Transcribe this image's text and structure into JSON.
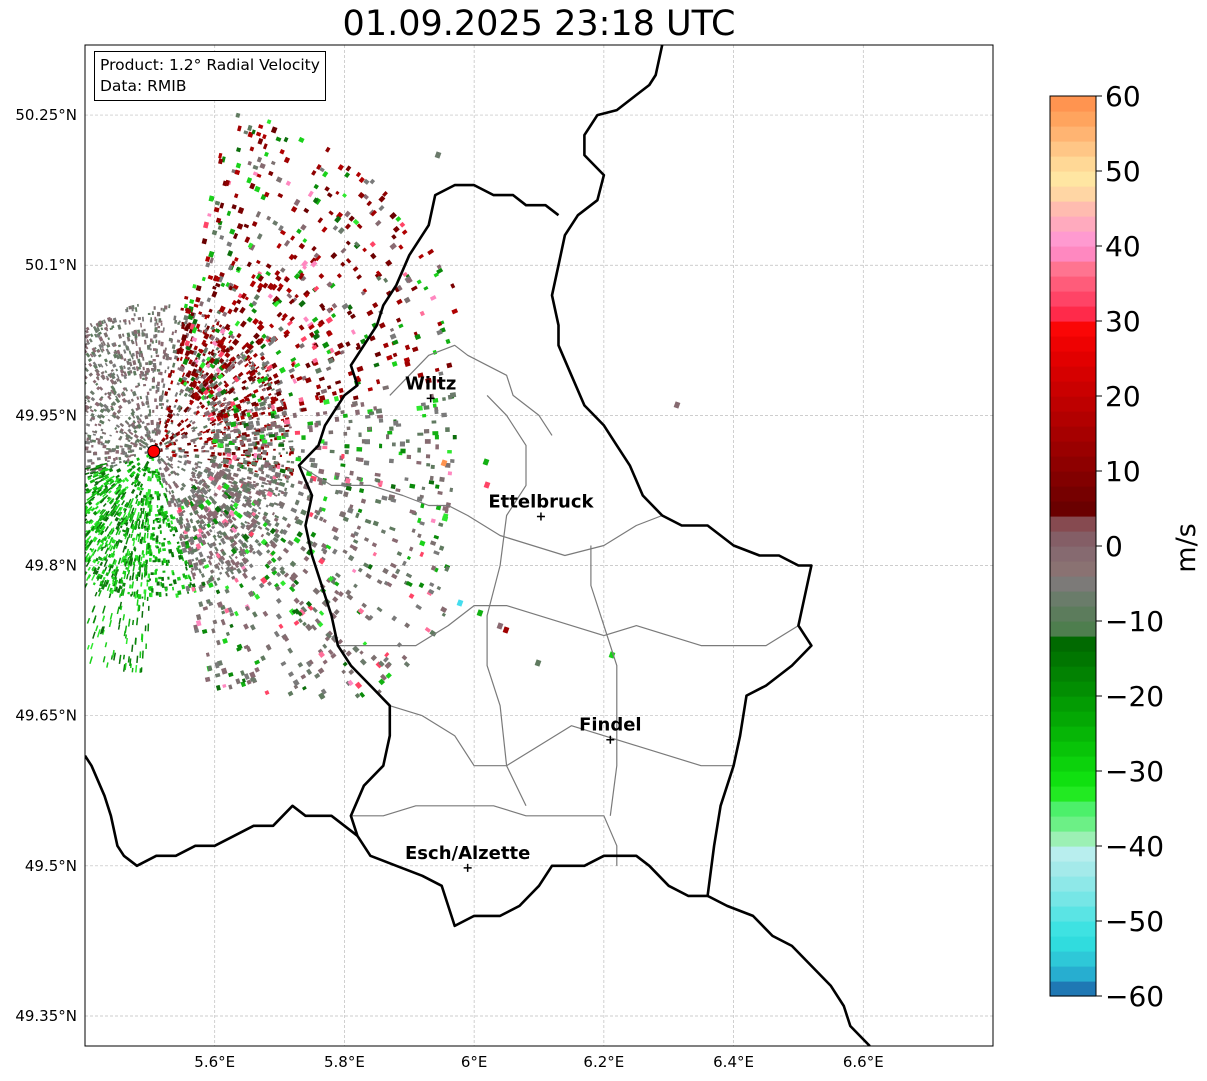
{
  "title": "01.09.2025 23:18 UTC",
  "info": {
    "product": "Product: 1.2° Radial Velocity",
    "data": "Data: RMIB"
  },
  "axes": {
    "lon_range": [
      5.4,
      6.8
    ],
    "lat_range": [
      49.32,
      50.32
    ],
    "x_ticks": [
      {
        "v": 5.6,
        "label": "5.6°E"
      },
      {
        "v": 5.8,
        "label": "5.8°E"
      },
      {
        "v": 6.0,
        "label": "6°E"
      },
      {
        "v": 6.2,
        "label": "6.2°E"
      },
      {
        "v": 6.4,
        "label": "6.4°E"
      },
      {
        "v": 6.6,
        "label": "6.6°E"
      }
    ],
    "y_ticks": [
      {
        "v": 50.25,
        "label": "50.25°N"
      },
      {
        "v": 50.1,
        "label": "50.1°N"
      },
      {
        "v": 49.95,
        "label": "49.95°N"
      },
      {
        "v": 49.8,
        "label": "49.8°N"
      },
      {
        "v": 49.65,
        "label": "49.65°N"
      },
      {
        "v": 49.5,
        "label": "49.5°N"
      },
      {
        "v": 49.35,
        "label": "49.35°N"
      }
    ],
    "grid": true
  },
  "radar_site": {
    "lon": 5.506,
    "lat": 49.914
  },
  "cities": [
    {
      "name": "Wiltz",
      "lon": 5.933,
      "lat": 49.967
    },
    {
      "name": "Ettelbruck",
      "lon": 6.103,
      "lat": 49.849
    },
    {
      "name": "Findel",
      "lon": 6.21,
      "lat": 49.626
    },
    {
      "name": "Esch/Alzette",
      "lon": 5.99,
      "lat": 49.498
    }
  ],
  "colorbar": {
    "label": "m/s",
    "min": -60,
    "max": 60,
    "ticks": [
      60,
      50,
      40,
      30,
      20,
      10,
      0,
      -10,
      -20,
      -30,
      -40,
      -50,
      -60
    ],
    "colors": [
      "#1f78b4",
      "#27aed0",
      "#2ec8d8",
      "#30dcde",
      "#3ee2e2",
      "#5ae4e4",
      "#76e6e6",
      "#8ee8e8",
      "#a4eaea",
      "#b8eeee",
      "#9cf0b4",
      "#6cf086",
      "#4cf06a",
      "#22ea22",
      "#10e010",
      "#0cd20c",
      "#08c408",
      "#06b606",
      "#04a804",
      "#039c03",
      "#028e02",
      "#028202",
      "#017601",
      "#016a01",
      "#4e7e4e",
      "#5c7c5c",
      "#6a7c6a",
      "#7c7a78",
      "#8a7272",
      "#866a70",
      "#845e66",
      "#864a50",
      "#6a0000",
      "#760000",
      "#820000",
      "#8e0000",
      "#9a0000",
      "#a60000",
      "#b20000",
      "#be0000",
      "#ca0000",
      "#d60000",
      "#e20000",
      "#ee0202",
      "#fa0606",
      "#ff2a4a",
      "#ff4466",
      "#ff5c7a",
      "#ff7490",
      "#ff88c0",
      "#ff9ad0",
      "#ffaabe",
      "#ffbcb0",
      "#ffd6a4",
      "#ffe6a2",
      "#ffd896",
      "#ffc686",
      "#ffb472",
      "#ffa45e",
      "#ff9450"
    ]
  },
  "borders": {
    "country": [
      [
        [
          6.29,
          50.32
        ],
        [
          6.28,
          50.29
        ],
        [
          6.27,
          50.28
        ],
        [
          6.25,
          50.27
        ],
        [
          6.22,
          50.255
        ],
        [
          6.19,
          50.25
        ],
        [
          6.17,
          50.23
        ],
        [
          6.17,
          50.21
        ],
        [
          6.2,
          50.19
        ],
        [
          6.19,
          50.165
        ],
        [
          6.16,
          50.15
        ],
        [
          6.15,
          50.14
        ],
        [
          6.14,
          50.13
        ],
        [
          6.13,
          50.1
        ],
        [
          6.12,
          50.07
        ],
        [
          6.13,
          50.04
        ],
        [
          6.13,
          50.02
        ],
        [
          6.15,
          49.99
        ],
        [
          6.17,
          49.96
        ],
        [
          6.2,
          49.94
        ],
        [
          6.22,
          49.92
        ],
        [
          6.24,
          49.9
        ],
        [
          6.26,
          49.87
        ],
        [
          6.29,
          49.85
        ],
        [
          6.32,
          49.84
        ],
        [
          6.36,
          49.84
        ],
        [
          6.4,
          49.82
        ],
        [
          6.44,
          49.81
        ],
        [
          6.47,
          49.81
        ],
        [
          6.5,
          49.8
        ],
        [
          6.52,
          49.8
        ],
        [
          6.51,
          49.77
        ],
        [
          6.5,
          49.74
        ],
        [
          6.52,
          49.72
        ],
        [
          6.49,
          49.7
        ],
        [
          6.45,
          49.68
        ],
        [
          6.42,
          49.67
        ],
        [
          6.41,
          49.63
        ],
        [
          6.4,
          49.6
        ],
        [
          6.38,
          49.56
        ],
        [
          6.37,
          49.52
        ],
        [
          6.36,
          49.47
        ],
        [
          6.33,
          49.47
        ],
        [
          6.3,
          49.48
        ],
        [
          6.27,
          49.5
        ],
        [
          6.25,
          49.51
        ],
        [
          6.2,
          49.51
        ],
        [
          6.17,
          49.5
        ],
        [
          6.12,
          49.5
        ],
        [
          6.1,
          49.48
        ],
        [
          6.07,
          49.46
        ],
        [
          6.04,
          49.45
        ],
        [
          6.0,
          49.45
        ],
        [
          5.97,
          49.44
        ],
        [
          5.96,
          49.46
        ],
        [
          5.95,
          49.48
        ],
        [
          5.92,
          49.49
        ],
        [
          5.88,
          49.5
        ],
        [
          5.84,
          49.51
        ],
        [
          5.82,
          49.53
        ],
        [
          5.81,
          49.55
        ],
        [
          5.83,
          49.58
        ],
        [
          5.86,
          49.6
        ],
        [
          5.87,
          49.63
        ],
        [
          5.87,
          49.66
        ],
        [
          5.84,
          49.68
        ],
        [
          5.81,
          49.7
        ],
        [
          5.79,
          49.72
        ],
        [
          5.78,
          49.75
        ],
        [
          5.76,
          49.79
        ],
        [
          5.75,
          49.81
        ],
        [
          5.74,
          49.84
        ],
        [
          5.75,
          49.87
        ],
        [
          5.73,
          49.9
        ],
        [
          5.76,
          49.92
        ],
        [
          5.77,
          49.94
        ],
        [
          5.8,
          49.97
        ],
        [
          5.82,
          49.98
        ],
        [
          5.81,
          50.0
        ],
        [
          5.83,
          50.02
        ],
        [
          5.85,
          50.04
        ],
        [
          5.86,
          50.06
        ],
        [
          5.88,
          50.08
        ],
        [
          5.9,
          50.11
        ],
        [
          5.93,
          50.14
        ],
        [
          5.94,
          50.17
        ],
        [
          5.97,
          50.18
        ],
        [
          6.0,
          50.18
        ],
        [
          6.03,
          50.17
        ],
        [
          6.06,
          50.17
        ],
        [
          6.08,
          50.16
        ],
        [
          6.11,
          50.16
        ],
        [
          6.13,
          50.15
        ]
      ],
      [
        [
          5.82,
          49.53
        ],
        [
          5.78,
          49.55
        ],
        [
          5.74,
          49.55
        ],
        [
          5.72,
          49.56
        ],
        [
          5.69,
          49.54
        ],
        [
          5.66,
          49.54
        ],
        [
          5.63,
          49.53
        ],
        [
          5.6,
          49.52
        ],
        [
          5.57,
          49.52
        ],
        [
          5.54,
          49.51
        ],
        [
          5.51,
          49.51
        ],
        [
          5.48,
          49.5
        ],
        [
          5.46,
          49.51
        ],
        [
          5.45,
          49.52
        ],
        [
          5.44,
          49.55
        ],
        [
          5.43,
          49.57
        ],
        [
          5.41,
          49.6
        ],
        [
          5.4,
          49.61
        ]
      ],
      [
        [
          6.36,
          49.47
        ],
        [
          6.39,
          49.46
        ],
        [
          6.43,
          49.45
        ],
        [
          6.46,
          49.43
        ],
        [
          6.49,
          49.42
        ],
        [
          6.52,
          49.4
        ],
        [
          6.55,
          49.38
        ],
        [
          6.57,
          49.36
        ],
        [
          6.58,
          49.34
        ],
        [
          6.61,
          49.32
        ]
      ]
    ],
    "canton": [
      [
        [
          5.87,
          49.97
        ],
        [
          5.9,
          49.99
        ],
        [
          5.93,
          50.01
        ],
        [
          5.97,
          50.02
        ],
        [
          5.99,
          50.01
        ],
        [
          6.02,
          50.0
        ],
        [
          6.05,
          49.99
        ],
        [
          6.06,
          49.97
        ],
        [
          6.1,
          49.95
        ],
        [
          6.12,
          49.93
        ]
      ],
      [
        [
          5.73,
          49.9
        ],
        [
          5.78,
          49.88
        ],
        [
          5.84,
          49.88
        ],
        [
          5.89,
          49.87
        ],
        [
          5.93,
          49.86
        ],
        [
          5.96,
          49.86
        ],
        [
          5.99,
          49.85
        ],
        [
          6.04,
          49.83
        ],
        [
          6.09,
          49.82
        ],
        [
          6.14,
          49.81
        ],
        [
          6.2,
          49.82
        ],
        [
          6.25,
          49.84
        ],
        [
          6.29,
          49.85
        ]
      ],
      [
        [
          5.79,
          49.72
        ],
        [
          5.85,
          49.72
        ],
        [
          5.91,
          49.72
        ],
        [
          5.96,
          49.74
        ],
        [
          6.0,
          49.76
        ],
        [
          6.05,
          49.76
        ],
        [
          6.1,
          49.75
        ],
        [
          6.15,
          49.74
        ],
        [
          6.2,
          49.73
        ],
        [
          6.25,
          49.74
        ],
        [
          6.3,
          49.73
        ],
        [
          6.35,
          49.72
        ],
        [
          6.4,
          49.72
        ],
        [
          6.45,
          49.72
        ],
        [
          6.5,
          49.74
        ]
      ],
      [
        [
          5.87,
          49.66
        ],
        [
          5.92,
          49.65
        ],
        [
          5.97,
          49.63
        ],
        [
          6.0,
          49.6
        ],
        [
          6.05,
          49.6
        ],
        [
          6.1,
          49.62
        ],
        [
          6.15,
          49.64
        ],
        [
          6.2,
          49.63
        ],
        [
          6.25,
          49.62
        ],
        [
          6.3,
          49.61
        ],
        [
          6.35,
          49.6
        ],
        [
          6.4,
          49.6
        ]
      ],
      [
        [
          5.81,
          49.55
        ],
        [
          5.86,
          49.55
        ],
        [
          5.91,
          49.56
        ],
        [
          5.97,
          49.56
        ],
        [
          6.03,
          49.56
        ],
        [
          6.08,
          49.55
        ],
        [
          6.12,
          49.55
        ],
        [
          6.17,
          49.55
        ],
        [
          6.2,
          49.55
        ],
        [
          6.22,
          49.52
        ],
        [
          6.22,
          49.5
        ]
      ],
      [
        [
          6.02,
          49.97
        ],
        [
          6.05,
          49.95
        ],
        [
          6.08,
          49.92
        ],
        [
          6.08,
          49.88
        ],
        [
          6.05,
          49.85
        ],
        [
          6.04,
          49.8
        ],
        [
          6.02,
          49.75
        ],
        [
          6.02,
          49.7
        ],
        [
          6.04,
          49.66
        ],
        [
          6.05,
          49.6
        ],
        [
          6.08,
          49.56
        ]
      ],
      [
        [
          6.18,
          49.82
        ],
        [
          6.18,
          49.78
        ],
        [
          6.2,
          49.74
        ],
        [
          6.22,
          49.7
        ],
        [
          6.22,
          49.66
        ],
        [
          6.22,
          49.6
        ],
        [
          6.21,
          49.55
        ]
      ]
    ]
  }
}
